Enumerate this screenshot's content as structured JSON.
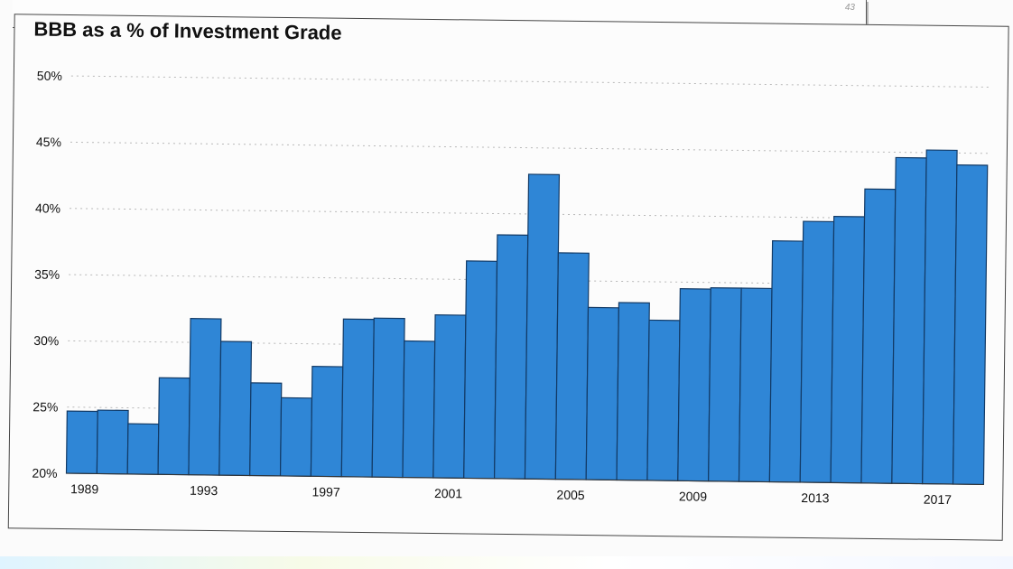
{
  "header": {
    "page_number": "43"
  },
  "colors": {
    "bar_fill": "#2f86d6",
    "bar_stroke": "#123a66",
    "grid": "#b8b8b8",
    "text": "#111111"
  },
  "chart_data": {
    "type": "bar",
    "title": "BBB as a % of Investment Grade",
    "xlabel": "",
    "ylabel": "",
    "ylim": [
      20,
      50
    ],
    "y_ticks": [
      "20%",
      "25%",
      "30%",
      "35%",
      "40%",
      "45%",
      "50%"
    ],
    "y_tick_values": [
      20,
      25,
      30,
      35,
      40,
      45,
      50
    ],
    "grid": true,
    "categories": [
      "1989",
      "1990",
      "1991",
      "1992",
      "1993",
      "1994",
      "1995",
      "1996",
      "1997",
      "1998",
      "1999",
      "2000",
      "2001",
      "2002",
      "2003",
      "2004",
      "2005",
      "2006",
      "2007",
      "2008",
      "2009",
      "2010",
      "2011",
      "2012",
      "2013",
      "2014",
      "2015",
      "2016",
      "2017",
      "2018"
    ],
    "x_tick_labels": [
      "1989",
      "1993",
      "1997",
      "2001",
      "2005",
      "2009",
      "2013",
      "2017"
    ],
    "values": [
      24.7,
      24.8,
      23.8,
      27.3,
      31.8,
      30.1,
      27.0,
      25.9,
      28.3,
      31.9,
      32.0,
      30.3,
      32.3,
      36.4,
      38.4,
      43.0,
      37.1,
      33.0,
      33.4,
      32.1,
      34.5,
      34.6,
      34.6,
      38.2,
      39.7,
      40.1,
      42.2,
      44.6,
      45.2,
      44.1
    ]
  }
}
